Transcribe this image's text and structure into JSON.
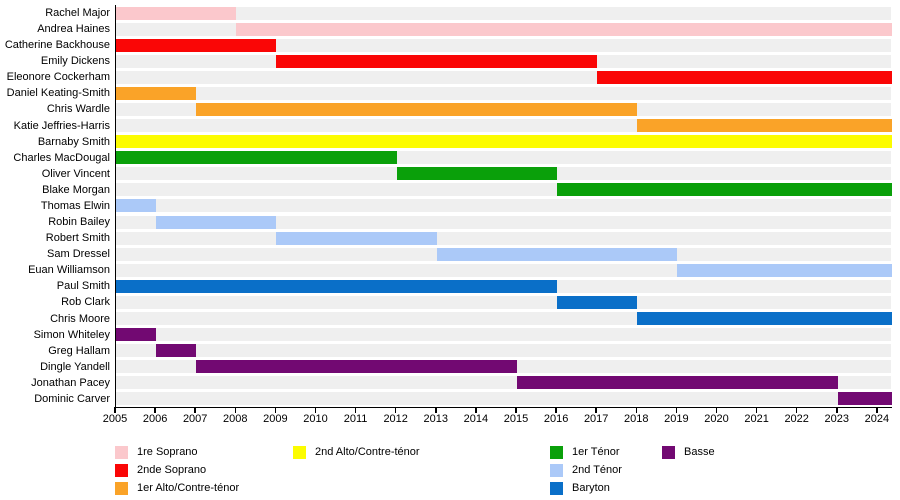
{
  "chart_data": {
    "type": "bar",
    "subtype": "gantt-membership-timeline",
    "title": "",
    "xlabel": "",
    "ylabel": "",
    "grid": false,
    "x_axis": {
      "min": 2005,
      "max": 2024.35,
      "tick_step": 1,
      "tick_labels": [
        "2005",
        "2006",
        "2007",
        "2008",
        "2009",
        "2010",
        "2011",
        "2012",
        "2013",
        "2014",
        "2015",
        "2016",
        "2017",
        "2018",
        "2019",
        "2020",
        "2021",
        "2022",
        "2023",
        "2024"
      ]
    },
    "voice_colors": {
      "1re Soprano": "#fbc8cc",
      "2nde Soprano": "#fa0606",
      "1er Alto/Contre-ténor": "#faa328",
      "2nd Alto/Contre-ténor": "#fcfc00",
      "1er Ténor": "#0aa00a",
      "2nd Ténor": "#abc9f8",
      "Baryton": "#0a6fc8",
      "Basse": "#720972"
    },
    "members": [
      {
        "name": "Rachel Major",
        "voice": "1re Soprano",
        "start": 2005,
        "end": 2008
      },
      {
        "name": "Andrea Haines",
        "voice": "1re Soprano",
        "start": 2008,
        "end": null
      },
      {
        "name": "Catherine Backhouse",
        "voice": "2nde Soprano",
        "start": 2005,
        "end": 2009
      },
      {
        "name": "Emily Dickens",
        "voice": "2nde Soprano",
        "start": 2009,
        "end": 2017
      },
      {
        "name": "Eleonore Cockerham",
        "voice": "2nde Soprano",
        "start": 2017,
        "end": null
      },
      {
        "name": "Daniel Keating-Smith",
        "voice": "1er Alto/Contre-ténor",
        "start": 2005,
        "end": 2007
      },
      {
        "name": "Chris Wardle",
        "voice": "1er Alto/Contre-ténor",
        "start": 2007,
        "end": 2018
      },
      {
        "name": "Katie Jeffries-Harris",
        "voice": "1er Alto/Contre-ténor",
        "start": 2018,
        "end": null
      },
      {
        "name": "Barnaby Smith",
        "voice": "2nd Alto/Contre-ténor",
        "start": 2005,
        "end": null
      },
      {
        "name": "Charles MacDougal",
        "voice": "1er Ténor",
        "start": 2005,
        "end": 2012
      },
      {
        "name": "Oliver Vincent",
        "voice": "1er Ténor",
        "start": 2012,
        "end": 2016
      },
      {
        "name": "Blake Morgan",
        "voice": "1er Ténor",
        "start": 2016,
        "end": null
      },
      {
        "name": "Thomas Elwin",
        "voice": "2nd Ténor",
        "start": 2005,
        "end": 2006
      },
      {
        "name": "Robin Bailey",
        "voice": "2nd Ténor",
        "start": 2006,
        "end": 2009
      },
      {
        "name": "Robert Smith",
        "voice": "2nd Ténor",
        "start": 2009,
        "end": 2013
      },
      {
        "name": "Sam Dressel",
        "voice": "2nd Ténor",
        "start": 2013,
        "end": 2019
      },
      {
        "name": "Euan Williamson",
        "voice": "2nd Ténor",
        "start": 2019,
        "end": null
      },
      {
        "name": "Paul Smith",
        "voice": "Baryton",
        "start": 2005,
        "end": 2016
      },
      {
        "name": "Rob Clark",
        "voice": "Baryton",
        "start": 2016,
        "end": 2018
      },
      {
        "name": "Chris Moore",
        "voice": "Baryton",
        "start": 2018,
        "end": null
      },
      {
        "name": "Simon Whiteley",
        "voice": "Basse",
        "start": 2005,
        "end": 2006
      },
      {
        "name": "Greg Hallam",
        "voice": "Basse",
        "start": 2006,
        "end": 2007
      },
      {
        "name": "Dingle Yandell",
        "voice": "Basse",
        "start": 2007,
        "end": 2015
      },
      {
        "name": "Jonathan Pacey",
        "voice": "Basse",
        "start": 2015,
        "end": 2023
      },
      {
        "name": "Dominic Carver",
        "voice": "Basse",
        "start": 2023,
        "end": null
      }
    ],
    "legend": {
      "position": "bottom",
      "columns": [
        [
          "1re Soprano",
          "2nde Soprano",
          "1er Alto/Contre-ténor"
        ],
        [
          "2nd Alto/Contre-ténor"
        ],
        [
          "1er Ténor",
          "2nd Ténor",
          "Baryton"
        ],
        [
          "Basse"
        ]
      ]
    },
    "style_colors": {
      "row_track": "#efefef",
      "axis": "#000000",
      "background": "#ffffff"
    }
  }
}
